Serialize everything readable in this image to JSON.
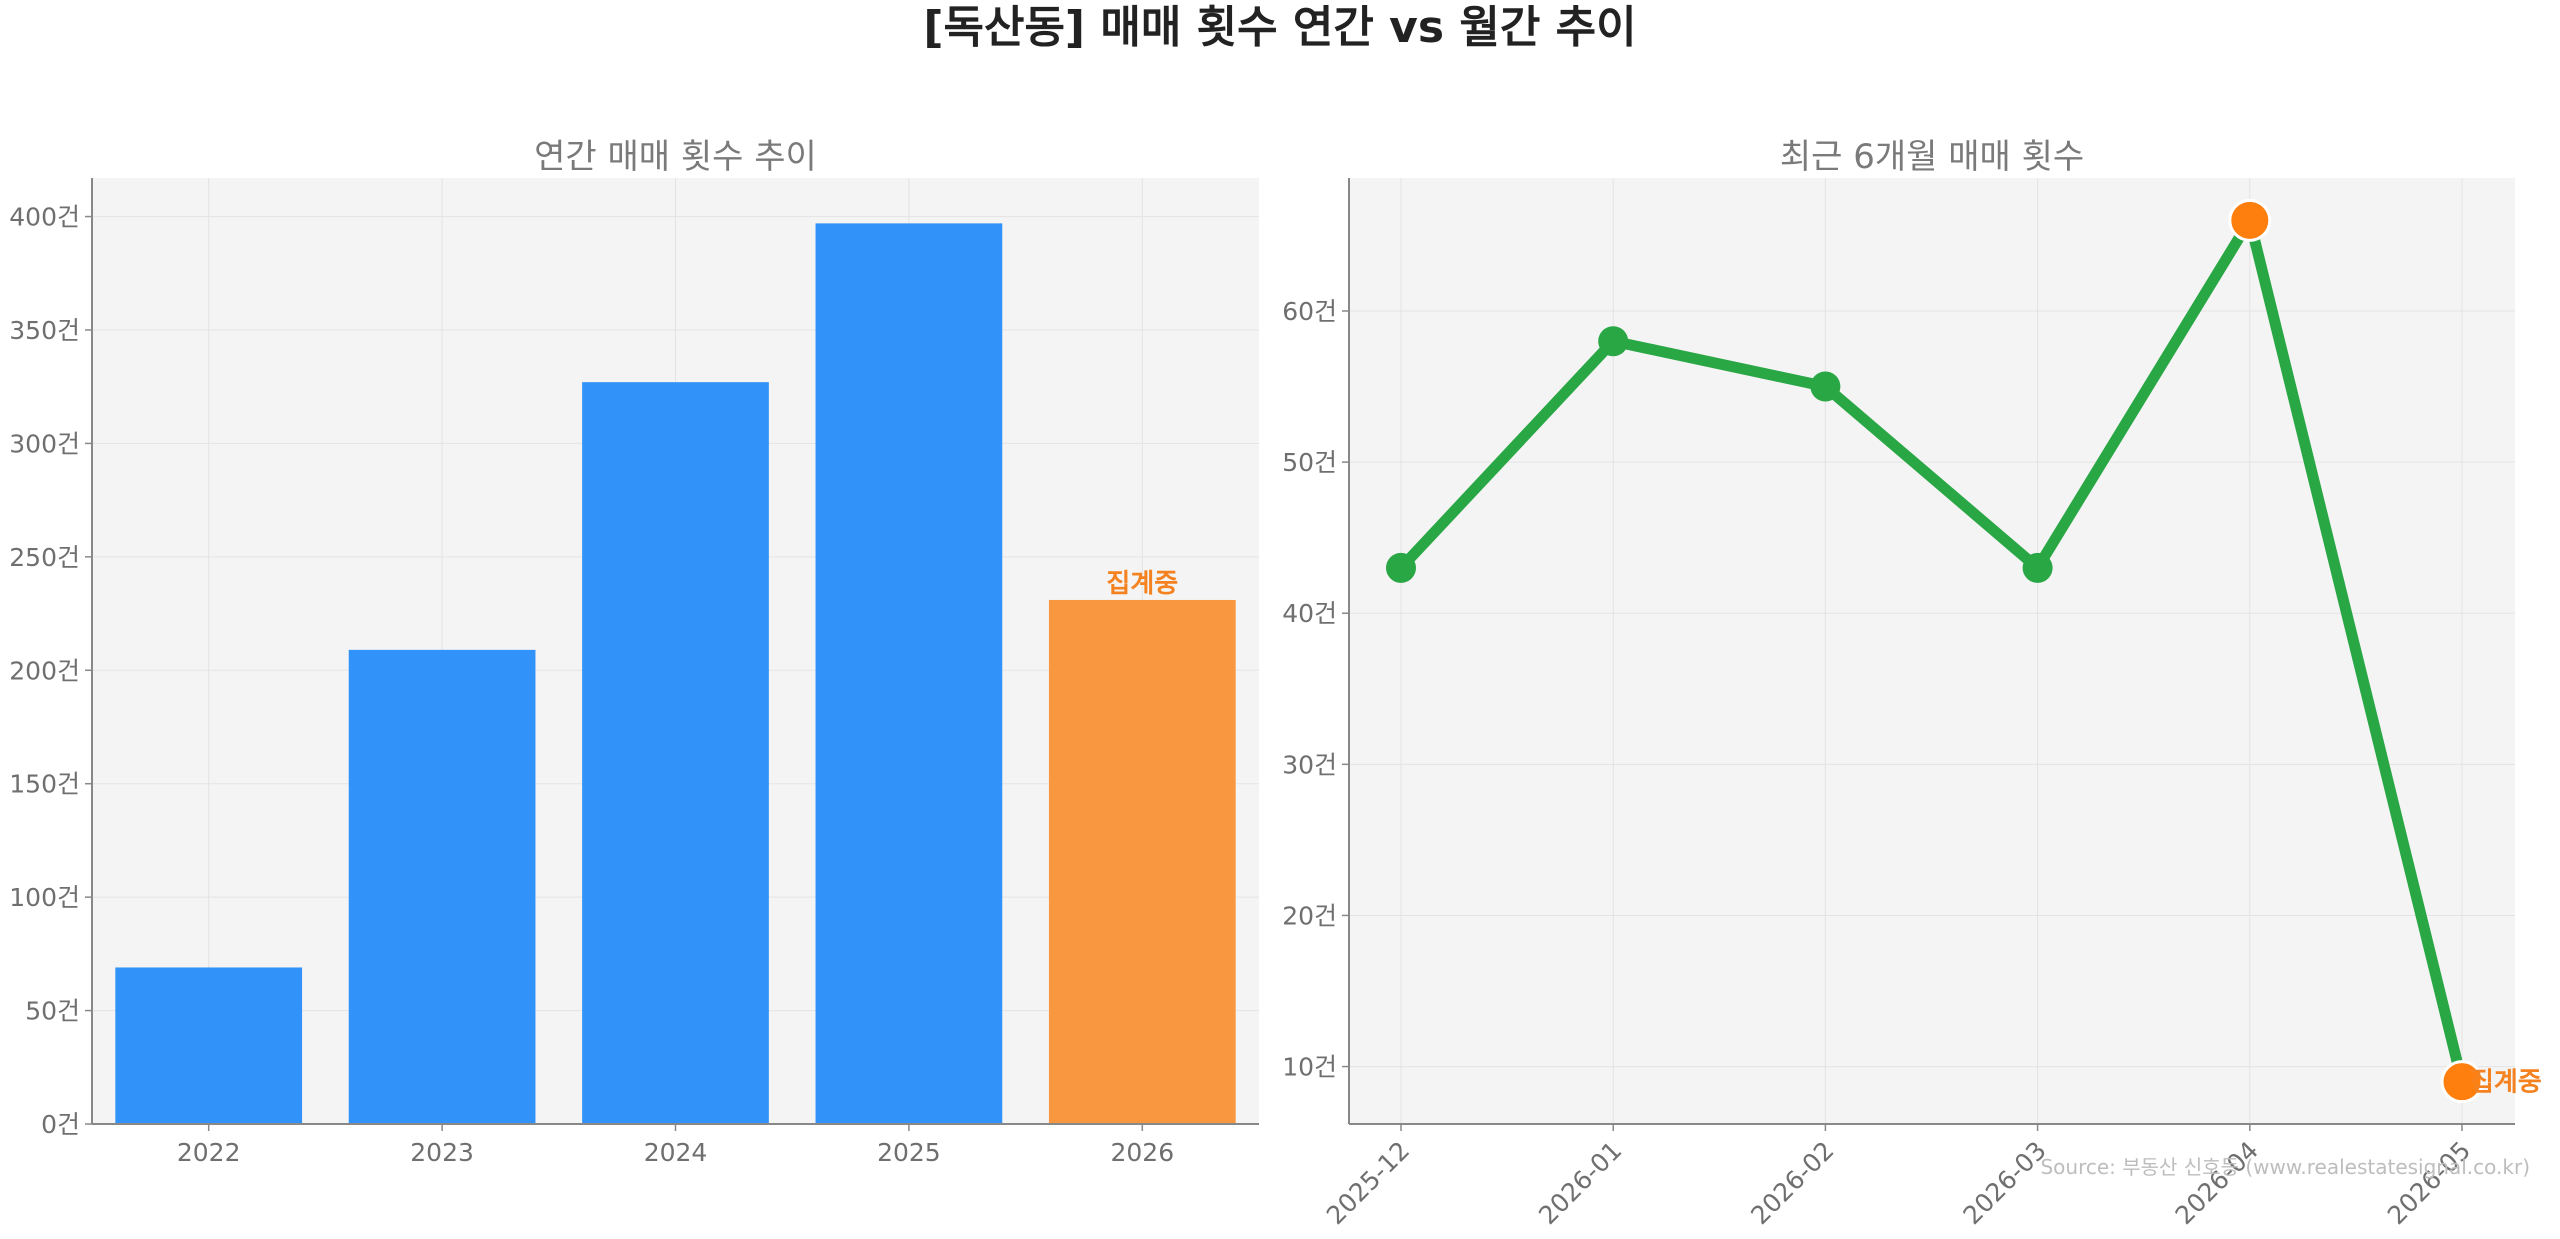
{
  "figure": {
    "title": "[독산동] 매매 횟수 연간 vs 월간 추이",
    "source": "Source: 부동산 신호등 (www.realestatesignal.co.kr)"
  },
  "colors": {
    "bar_complete": "#3192fa",
    "bar_pending": "#f89740",
    "line": "#2aa745",
    "highlight": "#ff7f0e",
    "pending_text": "#f58220",
    "plot_bg": "#f4f4f4",
    "axis_text": "#6f6f6f",
    "subtitle_text": "#7a7a7a",
    "title_text": "#222222",
    "source_text": "#bdbdbd"
  },
  "chart_data": [
    {
      "type": "bar",
      "title": "연간 매매 횟수 추이",
      "categories": [
        "2022",
        "2023",
        "2024",
        "2025",
        "2026"
      ],
      "values": [
        69,
        209,
        327,
        397,
        231
      ],
      "ylim": [
        0,
        417
      ],
      "yticks": [
        0,
        50,
        100,
        150,
        200,
        250,
        300,
        350,
        400
      ],
      "ytick_labels": [
        "0건",
        "50건",
        "100건",
        "150건",
        "200건",
        "250건",
        "300건",
        "350건",
        "400건"
      ],
      "grid": true,
      "annotations": [
        {
          "category": "2026",
          "text": "집계중"
        }
      ]
    },
    {
      "type": "line",
      "title": "최근 6개월 매매 횟수",
      "x": [
        "2025-12",
        "2026-01",
        "2026-02",
        "2026-03",
        "2026-04",
        "2026-05"
      ],
      "values": [
        43,
        58,
        55,
        43,
        66,
        9
      ],
      "ylim": [
        6.2,
        68.8
      ],
      "yticks": [
        10,
        20,
        30,
        40,
        50,
        60
      ],
      "ytick_labels": [
        "10건",
        "20건",
        "30건",
        "40건",
        "50건",
        "60건"
      ],
      "grid": true,
      "highlight_points": [
        "2026-04",
        "2026-05"
      ],
      "annotations": [
        {
          "x": "2026-05",
          "text": "집계중"
        }
      ]
    }
  ]
}
